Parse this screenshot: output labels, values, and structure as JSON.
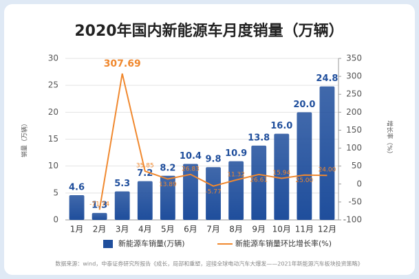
{
  "chart_data": {
    "type": "bar-line",
    "title": "2020年国内新能源车月度销量（万辆）",
    "ylabel": "销量（万辆）",
    "y2label": "增长率（%）",
    "source": "数据来源：wind，中泰证券研究所报告《成长，局部和重塑，迎接全球电动汽车大爆发——2021年新能源汽车板块投资策略》",
    "categories": [
      "1月",
      "2月",
      "3月",
      "4月",
      "5月",
      "6月",
      "7月",
      "8月",
      "9月",
      "10月",
      "11月",
      "12月"
    ],
    "series": [
      {
        "name": "新能源车销量(万辆)",
        "type": "bar",
        "color": "#1f4e9c",
        "values": [
          4.6,
          1.3,
          5.3,
          7.2,
          8.2,
          10.4,
          9.8,
          10.9,
          13.8,
          16.0,
          20.0,
          24.8
        ],
        "value_labels": [
          "4.6",
          "1.3",
          "5.3",
          "7.2",
          "8.2",
          "10.4",
          "9.8",
          "10.9",
          "13.8",
          "16.0",
          "20.0",
          "24.8"
        ]
      },
      {
        "name": "新能源车销量环比增长率(%)",
        "type": "line",
        "axis": "y2",
        "color": "#f0882e",
        "values": [
          null,
          -71.74,
          307.69,
          35.85,
          13.89,
          26.83,
          -5.77,
          11.32,
          26.61,
          15.94,
          25.0,
          24.0
        ],
        "value_labels": [
          null,
          "-71.74",
          "307.69",
          "35.85",
          "13.89",
          "26.83",
          "-5.77",
          "11.32",
          "26.61",
          "15.94",
          "25.00",
          "24.00"
        ]
      }
    ],
    "ylim": [
      0,
      30
    ],
    "yticks": [
      0,
      5,
      10,
      15,
      20,
      25,
      30
    ],
    "y2lim": [
      -100,
      350
    ],
    "y2ticks": [
      -100,
      -50,
      0,
      50,
      100,
      150,
      200,
      250,
      300,
      350
    ],
    "grid": true,
    "legend": "bottom"
  }
}
